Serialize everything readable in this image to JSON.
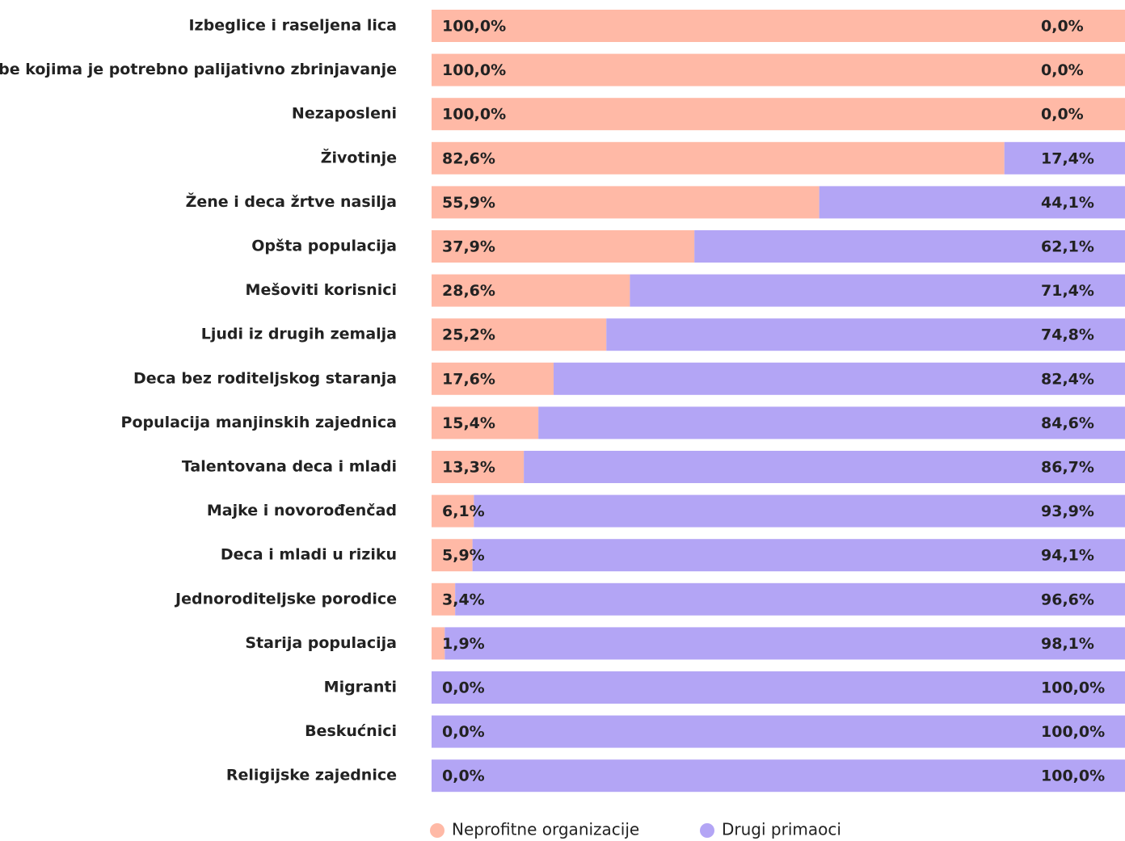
{
  "chart_data": {
    "type": "stacked_bar_horizontal",
    "categories": [
      "Izbeglice i raseljena lica",
      "Osobe kojima je potrebno palijativno zbrinjavanje",
      "Nezaposleni",
      "Životinje",
      "Žene i deca žrtve nasilja",
      "Opšta populacija",
      "Mešoviti korisnici",
      "Ljudi iz drugih zemalja",
      "Deca bez roditeljskog staranja",
      "Populacija manjinskih zajednica",
      "Talentovana deca i mladi",
      "Majke i novorođenčad",
      "Deca i mladi u riziku",
      "Jednoroditeljske porodice",
      "Starija populacija",
      "Migranti",
      "Beskućnici",
      "Religijske zajednice"
    ],
    "series": [
      {
        "name": "Neprofitne organizacije",
        "color": "#ffb9a6",
        "values": [
          100,
          100,
          100,
          82.6,
          55.9,
          37.9,
          28.6,
          25.2,
          17.6,
          15.4,
          13.3,
          6.1,
          5.9,
          3.4,
          1.9,
          0,
          0,
          0
        ],
        "value_labels": [
          "100,0%",
          "100,0%",
          "100,0%",
          "82,6%",
          "55,9%",
          "37,9%",
          "28,6%",
          "25,2%",
          "17,6%",
          "15,4%",
          "13,3%",
          "6,1%",
          "5,9%",
          "3,4%",
          "1,9%",
          "0,0%",
          "0,0%",
          "0,0%"
        ]
      },
      {
        "name": "Drugi primaoci",
        "color": "#b3a5f5",
        "values": [
          0,
          0,
          0,
          17.4,
          44.1,
          62.1,
          71.4,
          74.8,
          82.4,
          84.6,
          86.7,
          93.9,
          94.1,
          96.6,
          98.1,
          100,
          100,
          100
        ],
        "value_labels": [
          "0,0%",
          "0,0%",
          "0,0%",
          "17,4%",
          "44,1%",
          "62,1%",
          "71,4%",
          "74,8%",
          "82,4%",
          "84,6%",
          "86,7%",
          "93,9%",
          "94,1%",
          "96,6%",
          "98,1%",
          "100,0%",
          "100,0%",
          "100,0%"
        ]
      }
    ],
    "xlim": [
      0,
      100
    ],
    "legend": "bottom"
  }
}
